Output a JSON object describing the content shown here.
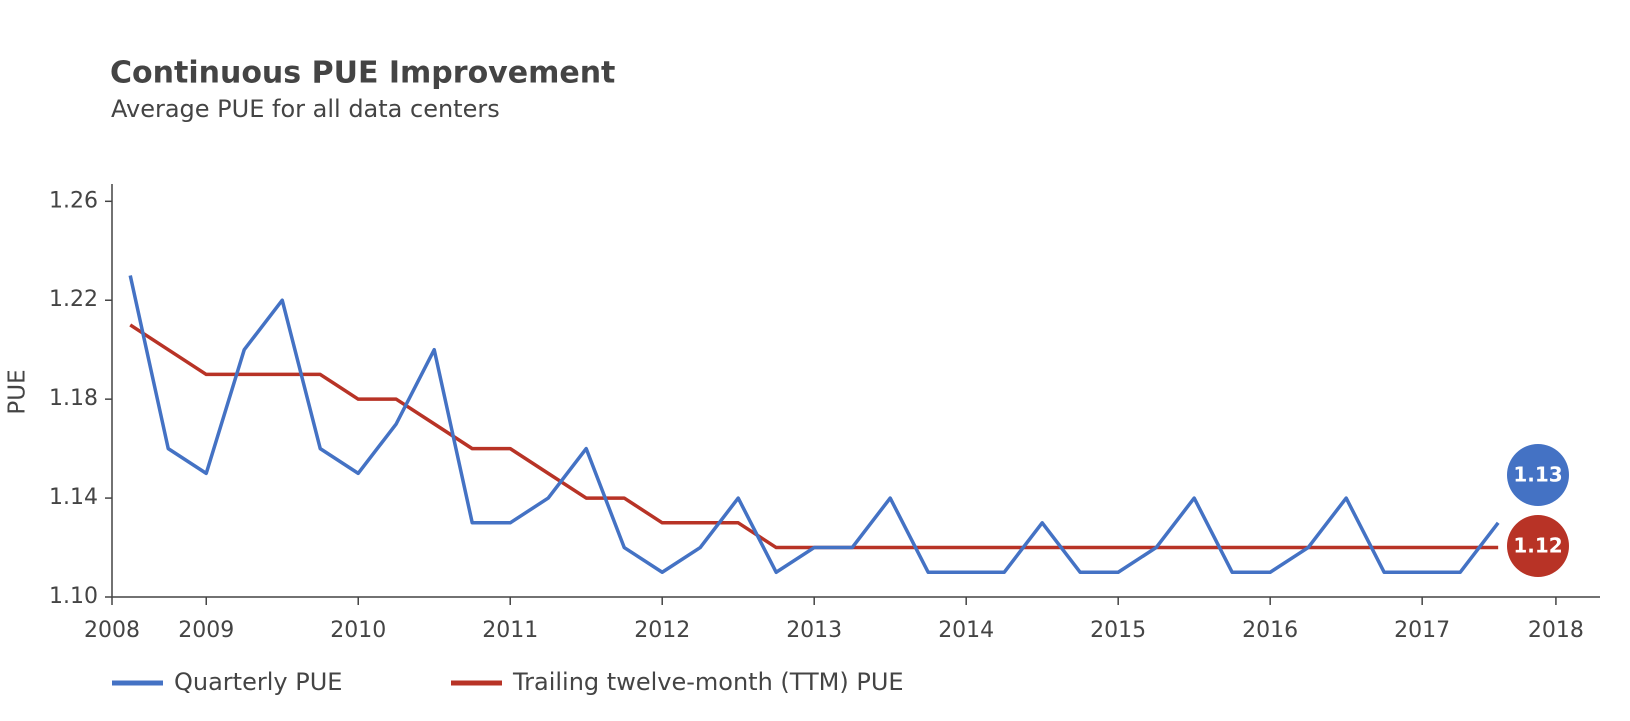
{
  "chart_data": {
    "type": "line",
    "title": "Continuous PUE Improvement",
    "subtitle": "Average PUE for all data centers",
    "y_label": "PUE",
    "x": [
      2008.5,
      2008.75,
      2009.0,
      2009.25,
      2009.5,
      2009.75,
      2010.0,
      2010.25,
      2010.5,
      2010.75,
      2011.0,
      2011.25,
      2011.5,
      2011.75,
      2012.0,
      2012.25,
      2012.5,
      2012.75,
      2013.0,
      2013.25,
      2013.5,
      2013.75,
      2014.0,
      2014.25,
      2014.5,
      2014.75,
      2015.0,
      2015.25,
      2015.5,
      2015.75,
      2016.0,
      2016.25,
      2016.5,
      2016.75,
      2017.0,
      2017.25,
      2017.5
    ],
    "series": [
      {
        "name": "Quarterly PUE",
        "color": "#4472c4",
        "values": [
          1.23,
          1.16,
          1.15,
          1.2,
          1.22,
          1.16,
          1.15,
          1.17,
          1.2,
          1.13,
          1.13,
          1.14,
          1.16,
          1.12,
          1.11,
          1.12,
          1.14,
          1.11,
          1.12,
          1.12,
          1.14,
          1.11,
          1.11,
          1.11,
          1.13,
          1.11,
          1.11,
          1.12,
          1.14,
          1.11,
          1.11,
          1.12,
          1.14,
          1.11,
          1.11,
          1.11,
          1.13
        ]
      },
      {
        "name": "Trailing twelve-month (TTM) PUE",
        "color": "#b83326",
        "values": [
          1.21,
          1.2,
          1.19,
          1.19,
          1.19,
          1.19,
          1.18,
          1.18,
          1.17,
          1.16,
          1.16,
          1.15,
          1.14,
          1.14,
          1.13,
          1.13,
          1.13,
          1.12,
          1.12,
          1.12,
          1.12,
          1.12,
          1.12,
          1.12,
          1.12,
          1.12,
          1.12,
          1.12,
          1.12,
          1.12,
          1.12,
          1.12,
          1.12,
          1.12,
          1.12,
          1.12,
          1.12
        ]
      }
    ],
    "xlim": [
      2008.38,
      2018.17
    ],
    "xticks": [
      {
        "value": 2008.38,
        "label": "2008"
      },
      2009,
      2010,
      2011,
      2012,
      2013,
      2014,
      2015,
      2016,
      2017,
      {
        "value": 2017.88,
        "label": "2018"
      }
    ],
    "ylim": [
      1.1,
      1.267
    ],
    "yticks": [
      {
        "value": 1.1,
        "label": "1.10"
      },
      1.14,
      1.18,
      1.22,
      1.26
    ],
    "grid": false
  }
}
